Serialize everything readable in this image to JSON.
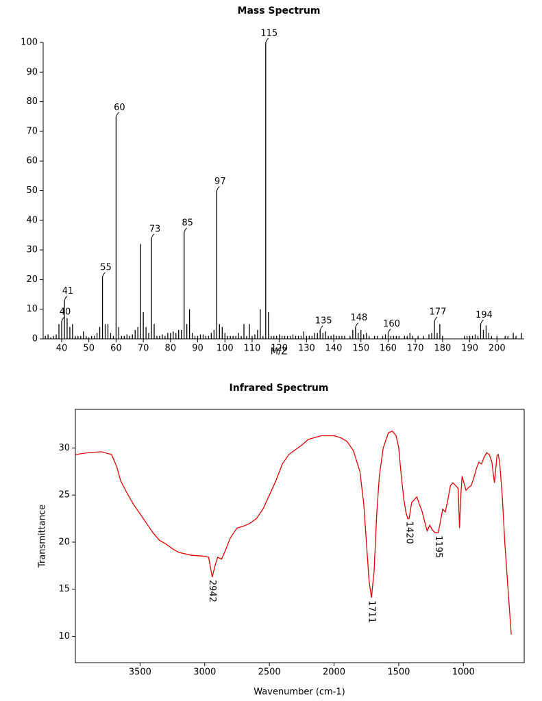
{
  "chart_data": [
    {
      "type": "bar",
      "title": "Mass Spectrum",
      "xlabel": "M/Z",
      "color": "#000000",
      "x": [
        34,
        35,
        36,
        37,
        38,
        39,
        40,
        41,
        42,
        43,
        44,
        45,
        46,
        47,
        48,
        49,
        50,
        51,
        52,
        53,
        54,
        55,
        56,
        57,
        58,
        59,
        60,
        61,
        62,
        63,
        64,
        65,
        66,
        67,
        68,
        69,
        70,
        71,
        72,
        73,
        74,
        75,
        76,
        77,
        78,
        79,
        80,
        81,
        82,
        83,
        84,
        85,
        86,
        87,
        88,
        89,
        90,
        91,
        92,
        93,
        94,
        95,
        96,
        97,
        98,
        99,
        100,
        101,
        102,
        103,
        104,
        105,
        106,
        107,
        108,
        109,
        110,
        111,
        112,
        113,
        114,
        115,
        116,
        117,
        118,
        119,
        120,
        121,
        122,
        123,
        124,
        125,
        126,
        127,
        128,
        129,
        130,
        131,
        132,
        133,
        134,
        135,
        136,
        137,
        138,
        139,
        140,
        141,
        142,
        143,
        144,
        146,
        147,
        148,
        149,
        150,
        151,
        152,
        153,
        155,
        156,
        158,
        159,
        160,
        161,
        162,
        163,
        164,
        166,
        167,
        168,
        169,
        171,
        173,
        175,
        176,
        177,
        178,
        179,
        180,
        188,
        189,
        190,
        191,
        192,
        193,
        194,
        195,
        196,
        197,
        198,
        200,
        203,
        204,
        206,
        207,
        209
      ],
      "values": [
        1,
        1.5,
        0.5,
        1,
        1.5,
        5,
        6,
        13,
        7,
        4,
        5,
        1,
        1,
        1,
        2.5,
        1,
        0.5,
        1,
        1,
        2,
        4,
        21,
        5,
        5,
        2,
        1,
        75,
        4,
        1,
        1,
        1.5,
        1,
        1.5,
        3,
        4,
        32,
        9,
        4,
        2,
        34,
        5,
        1,
        1,
        1.5,
        1,
        2,
        2,
        2.5,
        2,
        3,
        3,
        36,
        5,
        10,
        2,
        1,
        1,
        1.5,
        1.5,
        1,
        1,
        2,
        3,
        50,
        5,
        4,
        2,
        1,
        1,
        1,
        1,
        2,
        1,
        5,
        1,
        5,
        1,
        1.5,
        3,
        10,
        1,
        100,
        9,
        1,
        1,
        1,
        1.5,
        1,
        1,
        1,
        1,
        1.5,
        1,
        1,
        1,
        2.5,
        1,
        1,
        1,
        2,
        2,
        3,
        2,
        2.5,
        1,
        1,
        1.5,
        1,
        1,
        1,
        1,
        1,
        3,
        4,
        2,
        3,
        1.5,
        2,
        1,
        1,
        1,
        1,
        1.5,
        2,
        1,
        1,
        1,
        1,
        1,
        1,
        2,
        1,
        1,
        1,
        1.5,
        2,
        6,
        2,
        5,
        1,
        1,
        1,
        1,
        1,
        1.5,
        1,
        5,
        3,
        4.5,
        2,
        1,
        1,
        1,
        1,
        2,
        1,
        2
      ],
      "peak_labels": [
        40,
        41,
        55,
        60,
        73,
        85,
        97,
        115,
        135,
        148,
        160,
        177,
        194
      ],
      "xlim": [
        33.2,
        210
      ],
      "ylim": [
        0,
        100
      ],
      "xticks": [
        40,
        50,
        60,
        70,
        80,
        90,
        100,
        110,
        120,
        130,
        140,
        150,
        160,
        170,
        180,
        190,
        200
      ],
      "yticks": [
        0,
        10,
        20,
        30,
        40,
        50,
        60,
        70,
        80,
        90,
        100
      ]
    },
    {
      "type": "line",
      "title": "Infrared Spectrum",
      "xlabel": "Wavenumber (cm-1)",
      "ylabel": "Transmittance",
      "color": "#e00000",
      "x": [
        4000,
        3900,
        3800,
        3720,
        3680,
        3650,
        3600,
        3550,
        3500,
        3450,
        3400,
        3350,
        3300,
        3250,
        3200,
        3100,
        3000,
        2970,
        2942,
        2920,
        2900,
        2870,
        2850,
        2800,
        2750,
        2700,
        2650,
        2600,
        2550,
        2500,
        2450,
        2400,
        2350,
        2300,
        2250,
        2200,
        2100,
        2000,
        1950,
        1900,
        1850,
        1800,
        1770,
        1750,
        1730,
        1711,
        1690,
        1670,
        1650,
        1620,
        1580,
        1550,
        1520,
        1500,
        1480,
        1460,
        1445,
        1430,
        1420,
        1400,
        1380,
        1360,
        1340,
        1320,
        1300,
        1280,
        1260,
        1240,
        1220,
        1195,
        1180,
        1160,
        1140,
        1120,
        1100,
        1080,
        1060,
        1040,
        1030,
        1020,
        1010,
        1000,
        980,
        960,
        940,
        920,
        900,
        880,
        860,
        840,
        820,
        800,
        780,
        760,
        740,
        730,
        720,
        700,
        680,
        650,
        630
      ],
      "values": [
        29.3,
        29.5,
        29.6,
        29.3,
        28,
        26.5,
        25.2,
        24,
        23,
        22,
        21,
        20.2,
        19.8,
        19.3,
        18.9,
        18.6,
        18.5,
        18.4,
        16.3,
        17.5,
        18.4,
        18.2,
        18.8,
        20.5,
        21.5,
        21.7,
        22,
        22.5,
        23.5,
        25,
        26.5,
        28.3,
        29.3,
        29.8,
        30.3,
        30.9,
        31.3,
        31.3,
        31.1,
        30.7,
        29.7,
        27.5,
        24,
        20,
        16,
        14.1,
        17,
        23,
        27,
        30,
        31.6,
        31.8,
        31.3,
        30,
        27,
        24.5,
        23.2,
        22.5,
        22.5,
        24.2,
        24.5,
        24.8,
        24,
        23.3,
        22.2,
        21.2,
        21.8,
        21.3,
        21,
        21,
        22,
        23.5,
        23.2,
        24.5,
        26,
        26.3,
        26,
        25.7,
        21.5,
        25,
        27,
        26.5,
        25.5,
        25.8,
        26,
        26.8,
        27.8,
        28.5,
        28.3,
        29,
        29.5,
        29.3,
        28.5,
        26.3,
        29.2,
        29.3,
        28.5,
        25,
        20,
        14,
        10.2
      ],
      "peak_labels": [
        2942,
        1711,
        1420,
        1195
      ],
      "xlim": [
        4000,
        530
      ],
      "ylim": [
        7.2,
        34.1
      ],
      "xticks": [
        3500,
        3000,
        2500,
        2000,
        1500,
        1000
      ],
      "yticks": [
        10,
        15,
        20,
        25,
        30
      ]
    }
  ]
}
